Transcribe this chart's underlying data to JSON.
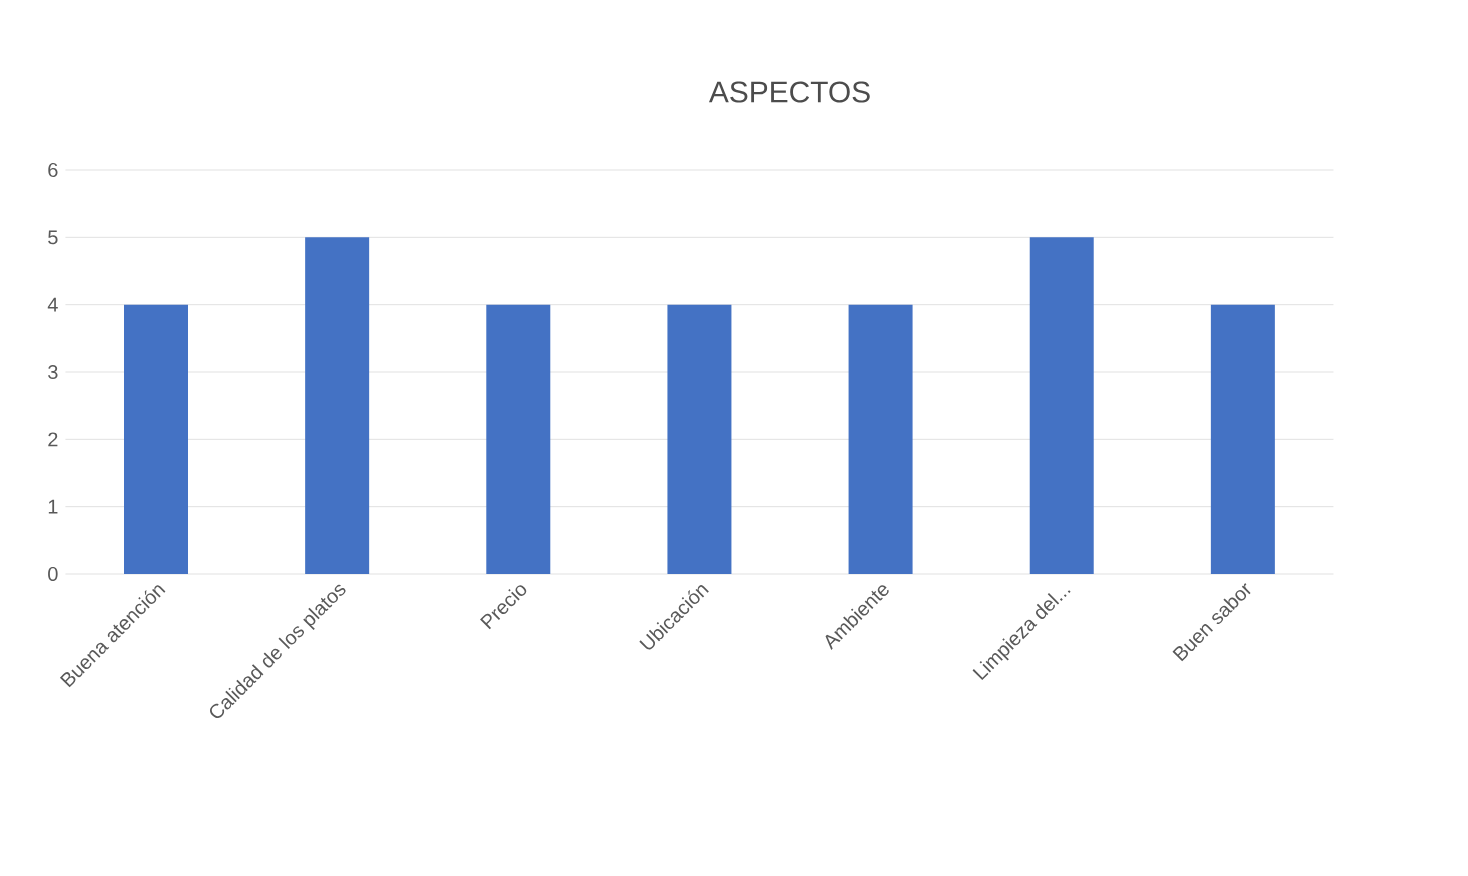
{
  "chart_data": {
    "type": "bar",
    "title": "ASPECTOS",
    "categories": [
      "Buena atención",
      "Calidad de los platos",
      "Precio",
      "Ubicación",
      "Ambiente",
      "Limpieza del...",
      "Buen sabor"
    ],
    "values": [
      4,
      5,
      4,
      4,
      4,
      5,
      4
    ],
    "color": "#4472c4",
    "ylim": [
      0,
      6
    ],
    "yticks": [
      0,
      1,
      2,
      3,
      4,
      5,
      6
    ],
    "grid": "y"
  }
}
